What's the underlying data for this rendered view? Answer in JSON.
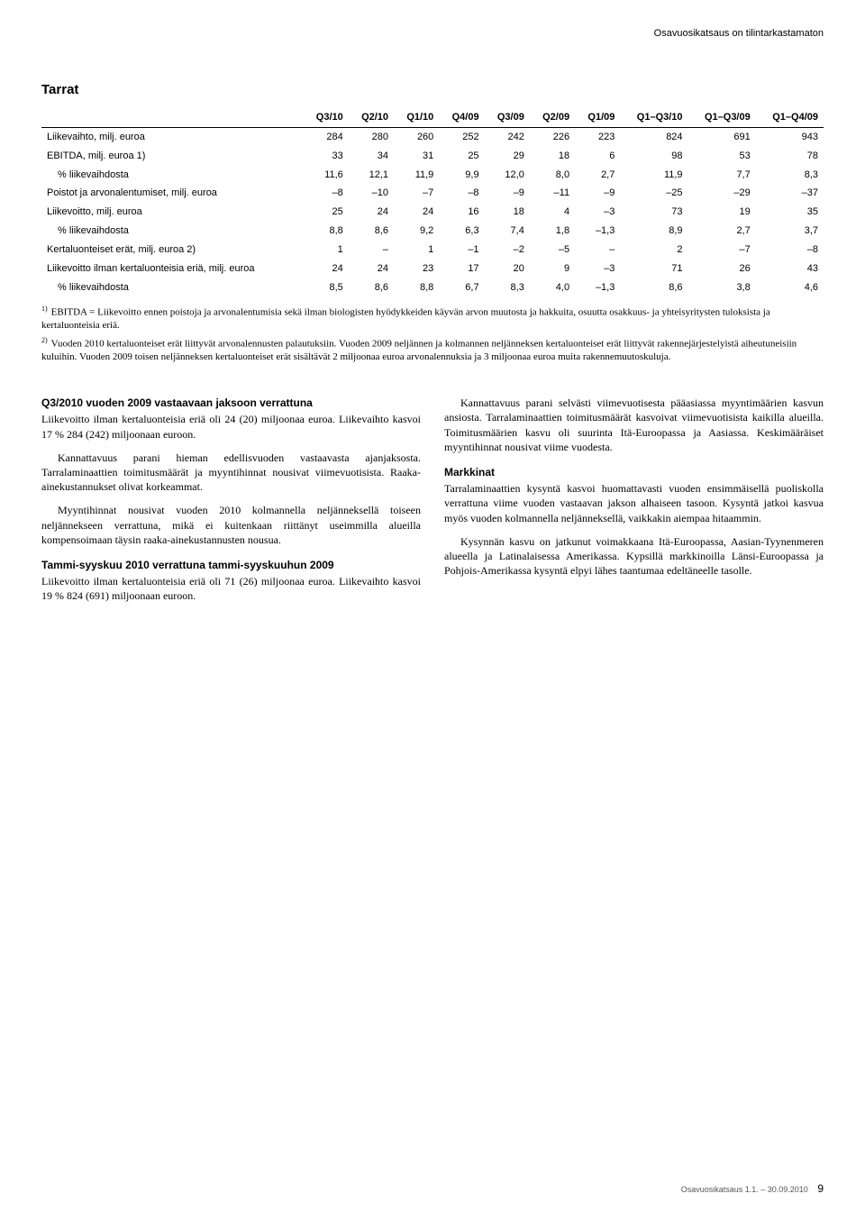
{
  "top_right": "Osavuosikatsaus on tilintarkastamaton",
  "section_title": "Tarrat",
  "table": {
    "columns": [
      "",
      "Q3/10",
      "Q2/10",
      "Q1/10",
      "Q4/09",
      "Q3/09",
      "Q2/09",
      "Q1/09",
      "Q1–Q3/10",
      "Q1–Q3/09",
      "Q1–Q4/09"
    ],
    "rows": [
      [
        "Liikevaihto, milj. euroa",
        "284",
        "280",
        "260",
        "252",
        "242",
        "226",
        "223",
        "824",
        "691",
        "943"
      ],
      [
        "EBITDA, milj. euroa 1)",
        "33",
        "34",
        "31",
        "25",
        "29",
        "18",
        "6",
        "98",
        "53",
        "78"
      ],
      [
        "  % liikevaihdosta",
        "11,6",
        "12,1",
        "11,9",
        "9,9",
        "12,0",
        "8,0",
        "2,7",
        "11,9",
        "7,7",
        "8,3"
      ],
      [
        "Poistot ja arvonalentumiset, milj. euroa",
        "–8",
        "–10",
        "–7",
        "–8",
        "–9",
        "–11",
        "–9",
        "–25",
        "–29",
        "–37"
      ],
      [
        "Liikevoitto, milj. euroa",
        "25",
        "24",
        "24",
        "16",
        "18",
        "4",
        "–3",
        "73",
        "19",
        "35"
      ],
      [
        "  % liikevaihdosta",
        "8,8",
        "8,6",
        "9,2",
        "6,3",
        "7,4",
        "1,8",
        "–1,3",
        "8,9",
        "2,7",
        "3,7"
      ],
      [
        "Kertaluonteiset erät, milj. euroa 2)",
        "1",
        "–",
        "1",
        "–1",
        "–2",
        "–5",
        "–",
        "2",
        "–7",
        "–8"
      ],
      [
        "Liikevoitto ilman kertaluonteisia eriä, milj. euroa",
        "24",
        "24",
        "23",
        "17",
        "20",
        "9",
        "–3",
        "71",
        "26",
        "43"
      ],
      [
        "  % liikevaihdosta",
        "8,5",
        "8,6",
        "8,8",
        "6,7",
        "8,3",
        "4,0",
        "–1,3",
        "8,6",
        "3,8",
        "4,6"
      ]
    ]
  },
  "footnotes": [
    {
      "sup": "1)",
      "text": "EBITDA = Liikevoitto ennen poistoja ja arvonalentumisia sekä ilman biologisten hyödykkeiden käyvän arvon muutosta ja hakkuita, osuutta osakkuus- ja yhteisyritysten tuloksista ja kertaluonteisia eriä."
    },
    {
      "sup": "2)",
      "text": "Vuoden 2010 kertaluonteiset erät liittyvät arvonalennusten palautuksiin. Vuoden 2009 neljännen ja kolmannen neljänneksen kertaluonteiset erät liittyvät rakennejärjestelyistä aiheutuneisiin kuluihin. Vuoden 2009 toisen neljänneksen kertaluonteiset erät sisältävät 2 miljoonaa euroa arvonalennuksia ja 3 miljoonaa euroa muita rakennemuutoskuluja."
    }
  ],
  "left_col": {
    "h1": "Q3/2010 vuoden 2009 vastaavaan jaksoon verrattuna",
    "p1": "Liikevoitto ilman kertaluonteisia eriä oli 24 (20) miljoonaa euroa. Liikevaihto kasvoi 17 % 284 (242) miljoonaan euroon.",
    "p2": "Kannattavuus parani hieman edellisvuoden vastaavasta ajanjaksosta. Tarralaminaattien toimitusmäärät ja myyntihinnat nousivat viimevuotisista. Raaka-ainekustannukset olivat korkeammat.",
    "p3": "Myyntihinnat nousivat vuoden 2010 kolmannella neljänneksellä toiseen neljännekseen verrattuna, mikä ei kuitenkaan riittänyt useimmilla alueilla kompensoimaan täysin raaka-ainekustannusten nousua.",
    "h2": "Tammi-syyskuu 2010 verrattuna tammi-syyskuuhun 2009",
    "p4": "Liikevoitto ilman kertaluonteisia eriä oli 71 (26) miljoonaa euroa. Liikevaihto kasvoi 19 % 824 (691) miljoonaan euroon."
  },
  "right_col": {
    "p1": "Kannattavuus parani selvästi viimevuotisesta pääasiassa myyntimäärien kasvun ansiosta. Tarralaminaattien toimitusmäärät kasvoivat viimevuotisista kaikilla alueilla. Toimitusmäärien kasvu oli suurinta Itä-Euroopassa ja Aasiassa. Keskimääräiset myyntihinnat nousivat viime vuodesta.",
    "h1": "Markkinat",
    "p2": "Tarralaminaattien kysyntä kasvoi huomattavasti vuoden ensimmäisellä puoliskolla verrattuna viime vuoden vastaavan jakson alhaiseen tasoon. Kysyntä jatkoi kasvua myös vuoden kolmannella neljänneksellä, vaikkakin aiempaa hitaammin.",
    "p3": "Kysynnän kasvu on jatkunut voimakkaana Itä-Euroopassa, Aasian-Tyynenmeren alueella ja Latinalaisessa Amerikassa. Kypsillä markkinoilla Länsi-Euroopassa ja Pohjois-Amerikassa kysyntä elpyi lähes taantumaa edeltäneelle tasolle."
  },
  "footer": {
    "text": "Osavuosikatsaus 1.1. – 30.09.2010",
    "page": "9"
  }
}
